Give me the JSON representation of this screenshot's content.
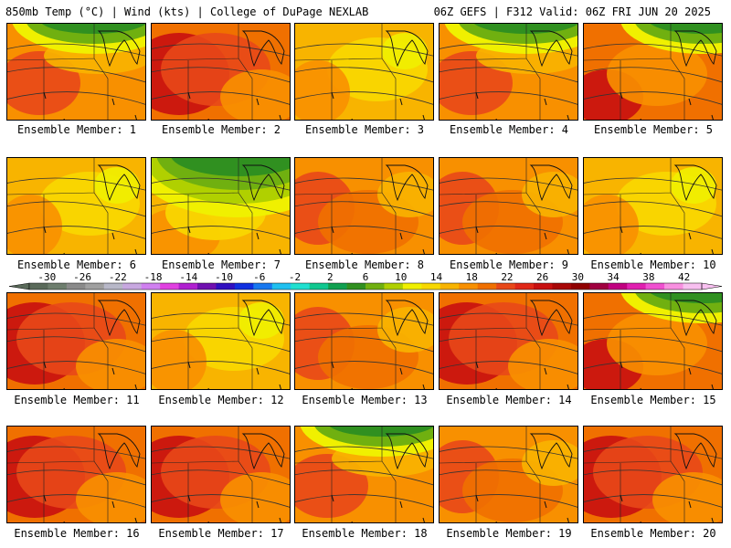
{
  "header": {
    "left": "850mb Temp (°C) | Wind (kts) | College of DuPage NEXLAB",
    "right": "06Z GEFS | F312 Valid: 06Z FRI JUN 20 2025"
  },
  "panels": [
    {
      "label": "Ensemble Member: 1",
      "theme": "cool-north"
    },
    {
      "label": "Ensemble Member: 2",
      "theme": "hot"
    },
    {
      "label": "Ensemble Member: 3",
      "theme": "mild"
    },
    {
      "label": "Ensemble Member: 4",
      "theme": "cool-north"
    },
    {
      "label": "Ensemble Member: 5",
      "theme": "cool-east"
    },
    {
      "label": "Ensemble Member: 6",
      "theme": "mild"
    },
    {
      "label": "Ensemble Member: 7",
      "theme": "cold"
    },
    {
      "label": "Ensemble Member: 8",
      "theme": "warm"
    },
    {
      "label": "Ensemble Member: 9",
      "theme": "warm"
    },
    {
      "label": "Ensemble Member: 10",
      "theme": "mild"
    },
    {
      "label": "Ensemble Member: 11",
      "theme": "hot"
    },
    {
      "label": "Ensemble Member: 12",
      "theme": "mild"
    },
    {
      "label": "Ensemble Member: 13",
      "theme": "warm"
    },
    {
      "label": "Ensemble Member: 14",
      "theme": "hot"
    },
    {
      "label": "Ensemble Member: 15",
      "theme": "cool-east"
    },
    {
      "label": "Ensemble Member: 16",
      "theme": "hot"
    },
    {
      "label": "Ensemble Member: 17",
      "theme": "hot"
    },
    {
      "label": "Ensemble Member: 18",
      "theme": "cool-north"
    },
    {
      "label": "Ensemble Member: 19",
      "theme": "warm"
    },
    {
      "label": "Ensemble Member: 20",
      "theme": "hot"
    }
  ],
  "colorbar": {
    "ticks": [
      "-30",
      "-26",
      "-22",
      "-18",
      "-14",
      "-10",
      "-6",
      "-2",
      "2",
      "6",
      "10",
      "14",
      "18",
      "22",
      "26",
      "30",
      "34",
      "38",
      "42"
    ],
    "colors": [
      "#5a6a5a",
      "#6e7e6e",
      "#8a8a8a",
      "#a0a0a0",
      "#b8b8c8",
      "#c8a8e0",
      "#d080f0",
      "#e040e0",
      "#b020d0",
      "#7010b0",
      "#3010c0",
      "#1030e0",
      "#1878f0",
      "#20c0f0",
      "#20e0d0",
      "#10c890",
      "#10a050",
      "#309020",
      "#70b010",
      "#b0d000",
      "#f0f000",
      "#f8d800",
      "#f8b400",
      "#f89000",
      "#f07000",
      "#e84818",
      "#e02818",
      "#c81010",
      "#a80808",
      "#900000",
      "#a00040",
      "#c00080",
      "#e020b0",
      "#f050d0",
      "#f890e0",
      "#f8c0f0"
    ]
  }
}
